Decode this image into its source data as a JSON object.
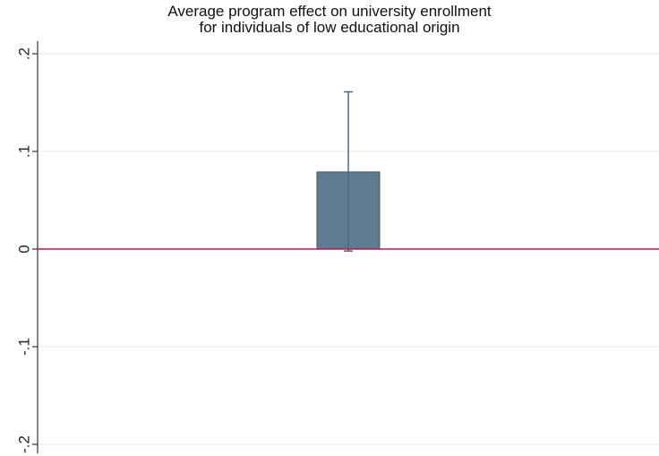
{
  "chart_data": {
    "type": "bar",
    "title_lines": [
      "Average program effect on university enrollment",
      "for individuals of low educational origin"
    ],
    "xlabel": "",
    "ylabel": "",
    "ylim": [
      -0.2,
      0.2
    ],
    "yticks": [
      {
        "value": 0.2,
        "label": ".2"
      },
      {
        "value": 0.1,
        "label": ".1"
      },
      {
        "value": 0,
        "label": "0"
      },
      {
        "value": -0.1,
        "label": "-.1"
      },
      {
        "value": -0.2,
        "label": "-.2"
      }
    ],
    "grid": true,
    "reference_line": {
      "value": 0,
      "color": "#c0144a"
    },
    "bars": [
      {
        "value": 0.079,
        "ci_low": -0.002,
        "ci_high": 0.161,
        "color": "#5e7c91"
      }
    ],
    "colors": {
      "bar": "#5e7c91",
      "bar_edge": "#3f5a6b",
      "grid": "#e6ecef",
      "axis": "#333333",
      "errorbar": "#4a6a80"
    }
  }
}
